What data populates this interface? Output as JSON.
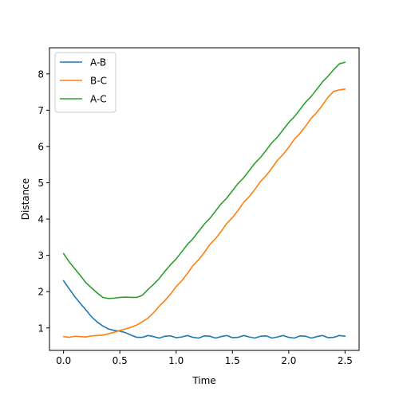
{
  "chart_data": {
    "type": "line",
    "title": "",
    "xlabel": "Time",
    "ylabel": "Distance",
    "xlim": [
      -0.125,
      2.625
    ],
    "ylim": [
      0.38,
      8.72
    ],
    "xticks": [
      0.0,
      0.5,
      1.0,
      1.5,
      2.0,
      2.5
    ],
    "xtick_labels": [
      "0.0",
      "0.5",
      "1.0",
      "1.5",
      "2.0",
      "2.5"
    ],
    "yticks": [
      1,
      2,
      3,
      4,
      5,
      6,
      7,
      8
    ],
    "ytick_labels": [
      "1",
      "2",
      "3",
      "4",
      "5",
      "6",
      "7",
      "8"
    ],
    "grid": false,
    "legend_position": "top-left",
    "x": [
      0.0,
      0.05,
      0.1,
      0.15,
      0.2,
      0.25,
      0.3,
      0.35,
      0.4,
      0.45,
      0.5,
      0.55,
      0.6,
      0.65,
      0.7,
      0.75,
      0.8,
      0.85,
      0.9,
      0.95,
      1.0,
      1.05,
      1.1,
      1.15,
      1.2,
      1.25,
      1.3,
      1.35,
      1.4,
      1.45,
      1.5,
      1.55,
      1.6,
      1.65,
      1.7,
      1.75,
      1.8,
      1.85,
      1.9,
      1.95,
      2.0,
      2.05,
      2.1,
      2.15,
      2.2,
      2.25,
      2.3,
      2.35,
      2.4,
      2.45,
      2.5
    ],
    "series": [
      {
        "name": "A-B",
        "color": "#1f77b4",
        "values": [
          2.3,
          2.08,
          1.86,
          1.67,
          1.49,
          1.3,
          1.16,
          1.05,
          0.97,
          0.93,
          0.91,
          0.87,
          0.8,
          0.74,
          0.74,
          0.79,
          0.76,
          0.72,
          0.77,
          0.78,
          0.73,
          0.75,
          0.79,
          0.74,
          0.72,
          0.78,
          0.77,
          0.72,
          0.76,
          0.79,
          0.73,
          0.74,
          0.79,
          0.75,
          0.72,
          0.77,
          0.78,
          0.72,
          0.75,
          0.79,
          0.74,
          0.72,
          0.78,
          0.77,
          0.72,
          0.76,
          0.79,
          0.73,
          0.74,
          0.79,
          0.77
        ]
      },
      {
        "name": "B-C",
        "color": "#ff7f0e",
        "values": [
          0.76,
          0.74,
          0.77,
          0.76,
          0.75,
          0.78,
          0.79,
          0.8,
          0.84,
          0.88,
          0.93,
          0.97,
          1.02,
          1.08,
          1.17,
          1.27,
          1.42,
          1.6,
          1.75,
          1.93,
          2.14,
          2.3,
          2.5,
          2.72,
          2.88,
          3.08,
          3.3,
          3.46,
          3.66,
          3.88,
          4.04,
          4.24,
          4.46,
          4.62,
          4.82,
          5.04,
          5.2,
          5.4,
          5.62,
          5.78,
          5.98,
          6.2,
          6.36,
          6.56,
          6.78,
          6.94,
          7.14,
          7.36,
          7.52,
          7.56,
          7.58
        ]
      },
      {
        "name": "A-C",
        "color": "#2ca02c",
        "values": [
          3.05,
          2.82,
          2.63,
          2.44,
          2.24,
          2.1,
          1.96,
          1.84,
          1.81,
          1.82,
          1.84,
          1.85,
          1.84,
          1.84,
          1.9,
          2.06,
          2.2,
          2.36,
          2.56,
          2.74,
          2.9,
          3.1,
          3.3,
          3.46,
          3.66,
          3.86,
          4.02,
          4.22,
          4.42,
          4.58,
          4.78,
          4.98,
          5.14,
          5.34,
          5.54,
          5.7,
          5.9,
          6.1,
          6.26,
          6.46,
          6.66,
          6.82,
          7.02,
          7.22,
          7.38,
          7.58,
          7.78,
          7.94,
          8.12,
          8.28,
          8.32
        ]
      }
    ]
  }
}
